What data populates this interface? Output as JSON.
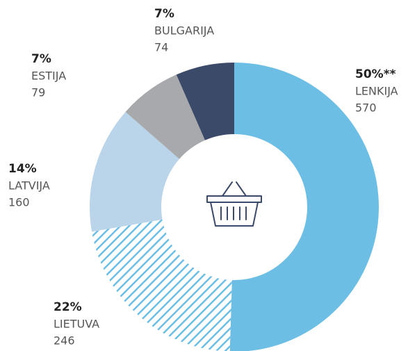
{
  "chart_data": {
    "type": "donut",
    "categories": [
      "LENKIJA",
      "LIETUVA",
      "LATVIJA",
      "ESTIJA",
      "BULGARIJA"
    ],
    "values": [
      570,
      246,
      160,
      79,
      74
    ],
    "share_labels": [
      "50%**",
      "22%",
      "14%",
      "7%",
      "7%"
    ],
    "colors": [
      "#6cbee4",
      "hatch",
      "#bad5e9",
      "#a7a9ac",
      "#3c4a69"
    ]
  }
}
